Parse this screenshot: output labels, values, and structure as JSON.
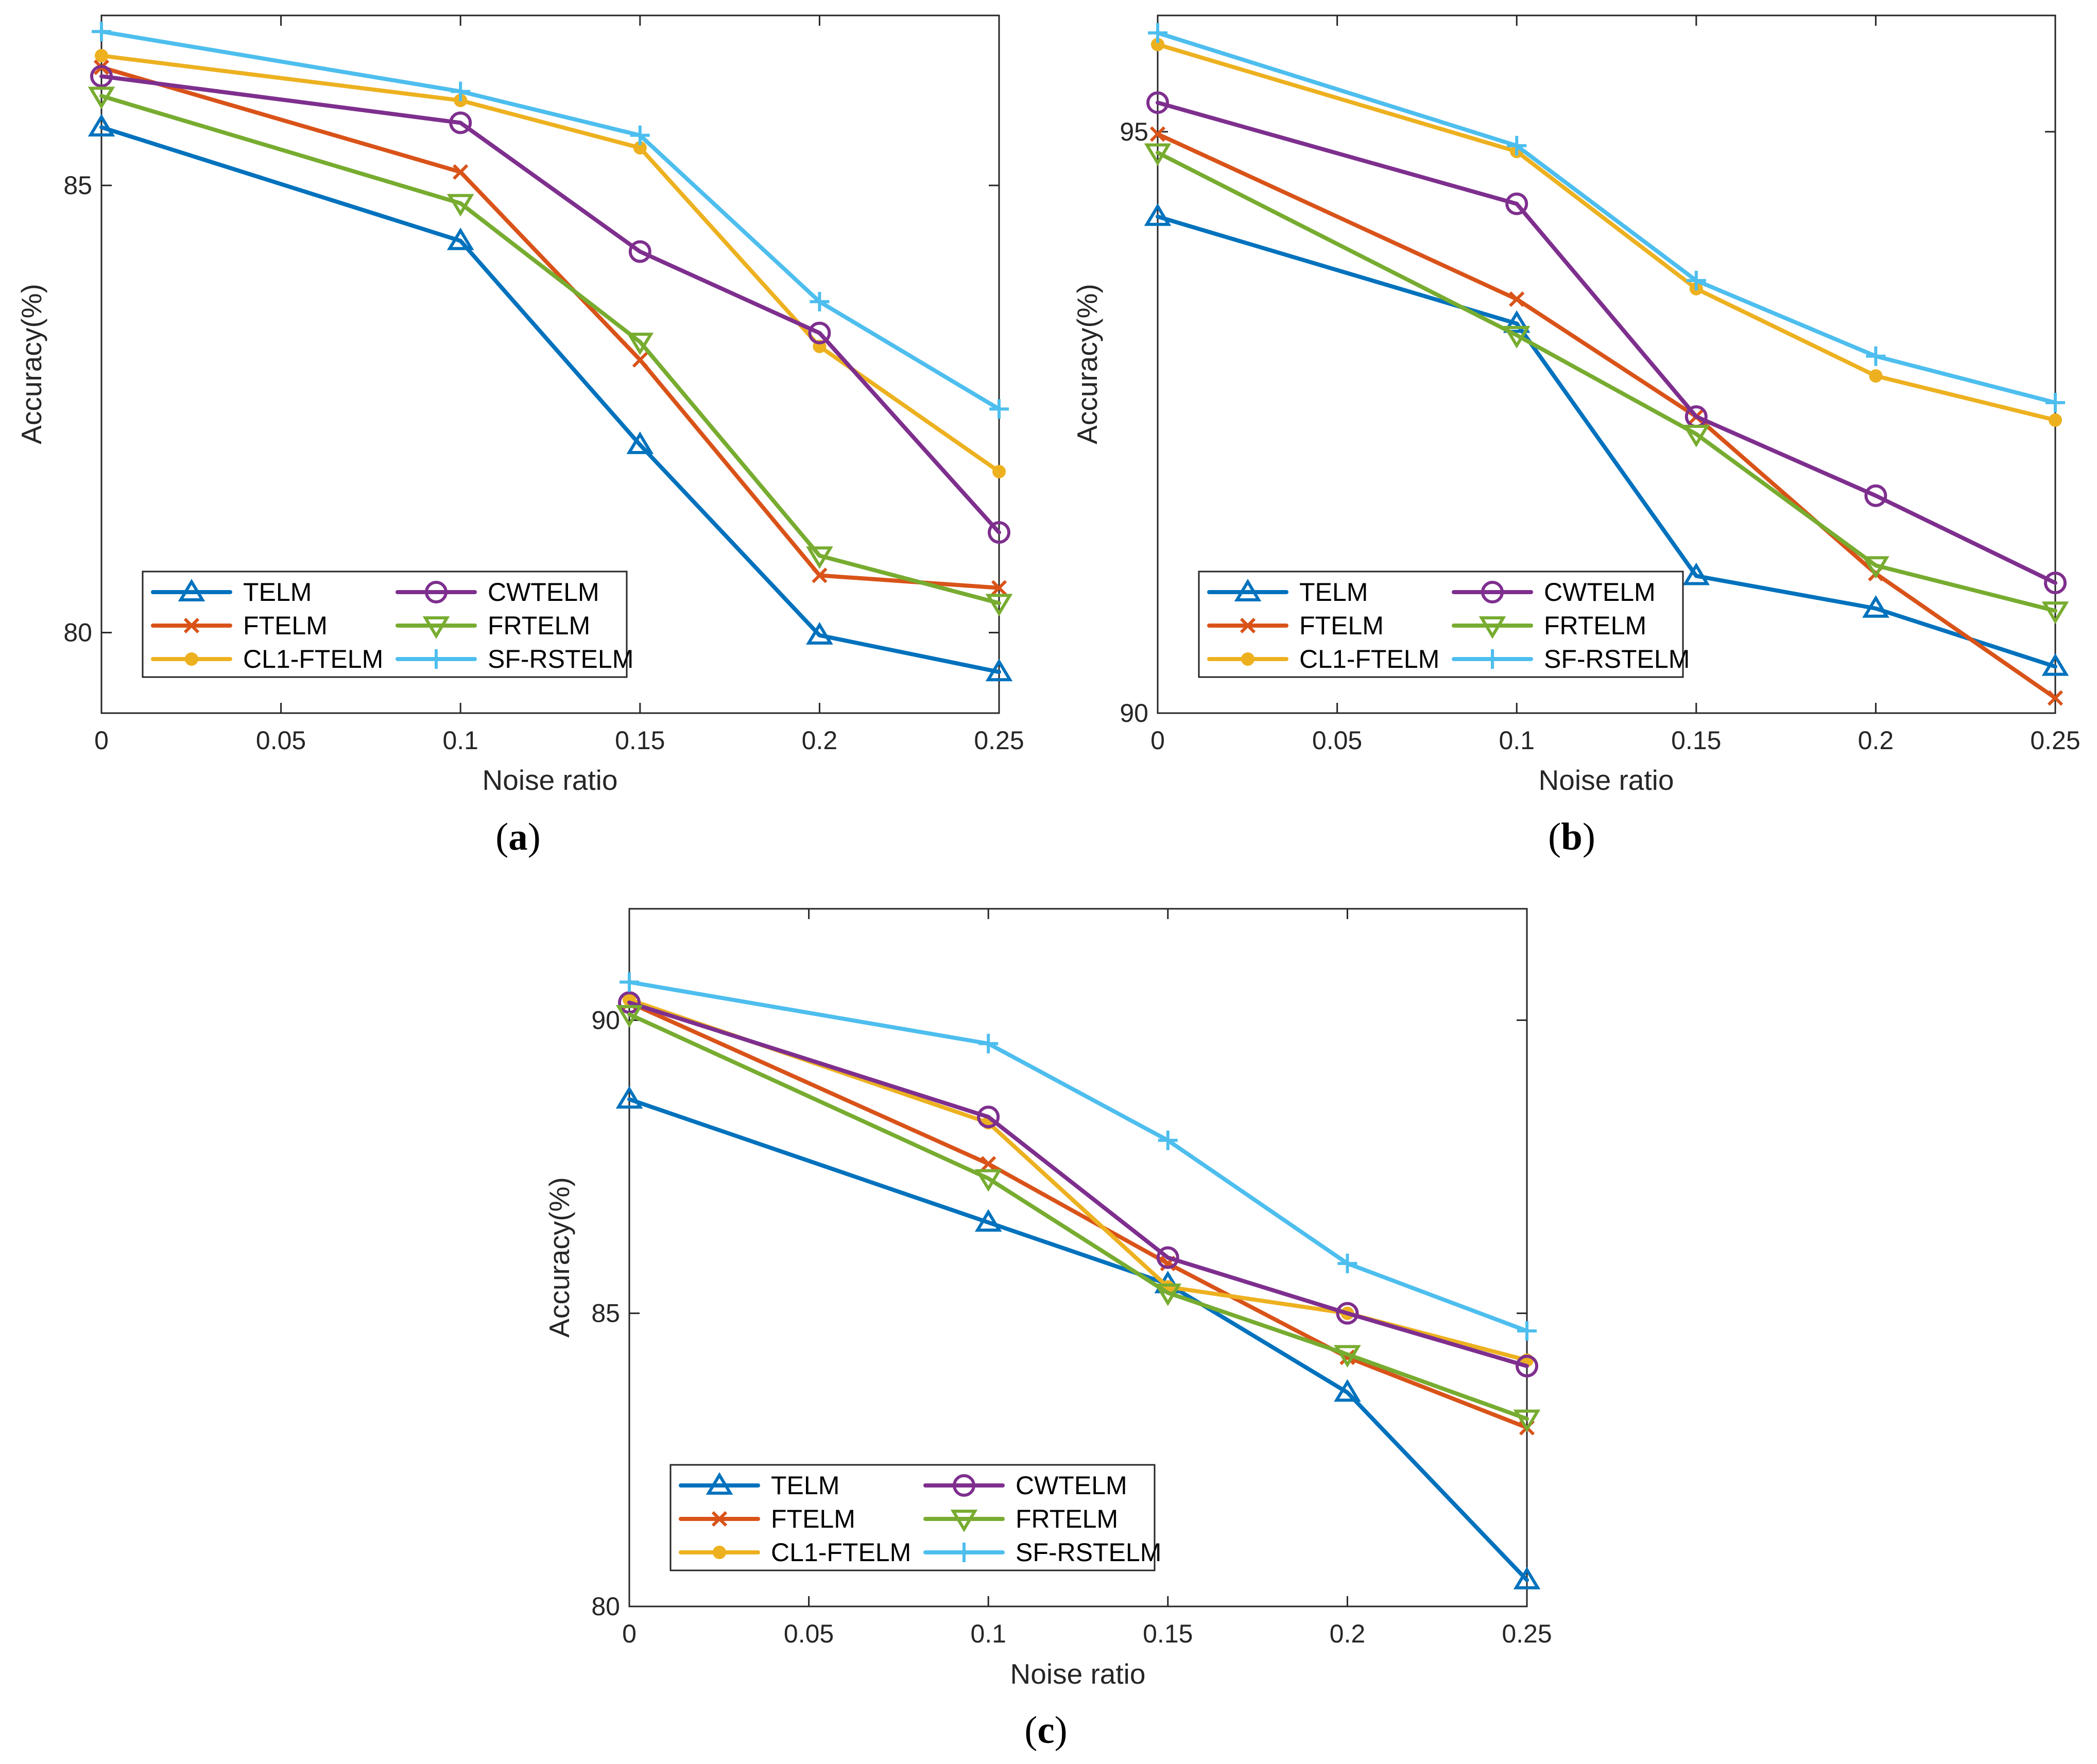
{
  "figure": {
    "panels": [
      {
        "id": "a",
        "caption_letter": "a",
        "xlabel": "Noise ratio",
        "ylabel": "Accuracy(%)"
      },
      {
        "id": "b",
        "caption_letter": "b",
        "xlabel": "Noise ratio",
        "ylabel": "Accuracy(%)"
      },
      {
        "id": "c",
        "caption_letter": "c",
        "xlabel": "Noise ratio",
        "ylabel": "Accuracy(%)"
      }
    ]
  },
  "series_styles": [
    {
      "name": "TELM",
      "color": "#0072BD",
      "marker": "triangle-up"
    },
    {
      "name": "FTELM",
      "color": "#D95319",
      "marker": "x"
    },
    {
      "name": "CL1-FTELM",
      "color": "#EDB120",
      "marker": "asterisk"
    },
    {
      "name": "CWTELM",
      "color": "#7E2F8E",
      "marker": "circle"
    },
    {
      "name": "FRTELM",
      "color": "#77AC30",
      "marker": "triangle-down"
    },
    {
      "name": "SF-RSTELM",
      "color": "#4DBEEE",
      "marker": "plus"
    }
  ],
  "chart_data": [
    {
      "panel": "a",
      "type": "line",
      "title": "",
      "xlabel": "Noise ratio",
      "ylabel": "Accuracy(%)",
      "xlim": [
        0,
        0.25
      ],
      "ylim": [
        79.1,
        86.9
      ],
      "xticks": [
        0,
        0.05,
        0.1,
        0.15,
        0.2,
        0.25
      ],
      "xtick_labels": [
        "0",
        "0.05",
        "0.1",
        "0.15",
        "0.2",
        "0.25"
      ],
      "yticks": [
        80,
        85
      ],
      "ytick_labels": [
        "80",
        "85"
      ],
      "legend_location": "bottom-left",
      "x": [
        0,
        0.1,
        0.15,
        0.2,
        0.25
      ],
      "series": [
        {
          "name": "TELM",
          "values": [
            85.65,
            84.38,
            82.1,
            79.97,
            79.56
          ]
        },
        {
          "name": "FTELM",
          "values": [
            86.32,
            85.15,
            83.05,
            80.64,
            80.5
          ]
        },
        {
          "name": "CL1-FTELM",
          "values": [
            86.45,
            85.95,
            85.42,
            83.2,
            81.8
          ]
        },
        {
          "name": "CWTELM",
          "values": [
            86.22,
            85.7,
            84.26,
            83.35,
            81.12
          ]
        },
        {
          "name": "FRTELM",
          "values": [
            86.0,
            84.8,
            83.25,
            80.86,
            80.33
          ]
        },
        {
          "name": "SF-RSTELM",
          "values": [
            86.72,
            86.05,
            85.56,
            83.7,
            82.5
          ]
        }
      ]
    },
    {
      "panel": "b",
      "type": "line",
      "title": "",
      "xlabel": "Noise ratio",
      "ylabel": "Accuracy(%)",
      "xlim": [
        0,
        0.25
      ],
      "ylim": [
        90,
        96
      ],
      "xticks": [
        0,
        0.05,
        0.1,
        0.15,
        0.2,
        0.25
      ],
      "xtick_labels": [
        "0",
        "0.05",
        "0.1",
        "0.15",
        "0.2",
        "0.25"
      ],
      "yticks": [
        90,
        95
      ],
      "ytick_labels": [
        "90",
        "95"
      ],
      "legend_location": "bottom-left",
      "x": [
        0,
        0.1,
        0.15,
        0.2,
        0.25
      ],
      "series": [
        {
          "name": "TELM",
          "values": [
            94.27,
            93.35,
            91.18,
            90.9,
            90.4
          ]
        },
        {
          "name": "FTELM",
          "values": [
            94.98,
            93.56,
            92.55,
            91.2,
            90.13
          ]
        },
        {
          "name": "CL1-FTELM",
          "values": [
            95.75,
            94.83,
            93.65,
            92.9,
            92.52
          ]
        },
        {
          "name": "CWTELM",
          "values": [
            95.25,
            94.38,
            92.55,
            91.87,
            91.12
          ]
        },
        {
          "name": "FRTELM",
          "values": [
            94.82,
            93.25,
            92.4,
            91.27,
            90.88
          ]
        },
        {
          "name": "SF-RSTELM",
          "values": [
            95.85,
            94.88,
            93.72,
            93.07,
            92.67
          ]
        }
      ]
    },
    {
      "panel": "c",
      "type": "line",
      "title": "",
      "xlabel": "Noise ratio",
      "ylabel": "Accuracy(%)",
      "xlim": [
        0,
        0.25
      ],
      "ylim": [
        80,
        91.9
      ],
      "xticks": [
        0,
        0.05,
        0.1,
        0.15,
        0.2,
        0.25
      ],
      "xtick_labels": [
        "0",
        "0.05",
        "0.1",
        "0.15",
        "0.2",
        "0.25"
      ],
      "yticks": [
        80,
        85,
        90
      ],
      "ytick_labels": [
        "80",
        "85",
        "90"
      ],
      "legend_location": "bottom-left",
      "x": [
        0,
        0.1,
        0.15,
        0.2,
        0.25
      ],
      "series": [
        {
          "name": "TELM",
          "values": [
            88.65,
            86.55,
            85.5,
            83.65,
            80.45
          ]
        },
        {
          "name": "FTELM",
          "values": [
            90.3,
            87.55,
            85.85,
            84.25,
            83.05
          ]
        },
        {
          "name": "CL1-FTELM",
          "values": [
            90.35,
            88.25,
            85.45,
            85.0,
            84.2
          ]
        },
        {
          "name": "CWTELM",
          "values": [
            90.3,
            88.35,
            85.95,
            85.0,
            84.1
          ]
        },
        {
          "name": "FRTELM",
          "values": [
            90.1,
            87.3,
            85.35,
            84.3,
            83.2
          ]
        },
        {
          "name": "SF-RSTELM",
          "values": [
            90.65,
            89.6,
            87.95,
            85.85,
            84.7
          ]
        }
      ]
    }
  ]
}
